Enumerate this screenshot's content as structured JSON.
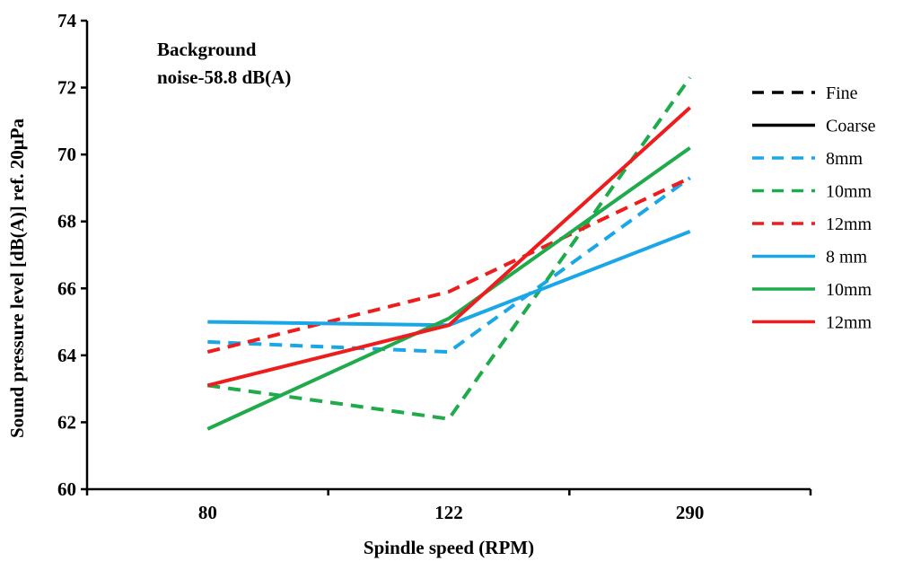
{
  "chart_data": {
    "type": "line",
    "categories": [
      "80",
      "122",
      "290"
    ],
    "xlabel": "Spindle speed (RPM)",
    "ylabel": "Sound pressure level [dB(A)] ref. 20μPa",
    "ylim": [
      60,
      74
    ],
    "yticks": [
      "60",
      "62",
      "64",
      "66",
      "68",
      "70",
      "72",
      "74"
    ],
    "grid": false,
    "legend_position": "right",
    "annotation": [
      "Background",
      "noise-58.8 dB(A)"
    ],
    "legend_style_entries": [
      {
        "label": "Fine",
        "dash": "dashed",
        "color": "#000000"
      },
      {
        "label": "Coarse",
        "dash": "solid",
        "color": "#000000"
      }
    ],
    "series": [
      {
        "name": "8mm",
        "style": "dashed",
        "color": "#1aa7e8",
        "values": [
          64.4,
          64.1,
          69.3
        ]
      },
      {
        "name": "10mm",
        "style": "dashed",
        "color": "#1faa4b",
        "values": [
          63.1,
          62.1,
          72.3
        ]
      },
      {
        "name": "12mm",
        "style": "dashed",
        "color": "#ee1c1c",
        "values": [
          64.1,
          65.9,
          69.3
        ]
      },
      {
        "name": "8 mm",
        "style": "solid",
        "color": "#1aa7e8",
        "values": [
          65.0,
          64.9,
          67.7
        ]
      },
      {
        "name": "10mm",
        "style": "solid",
        "color": "#1faa4b",
        "values": [
          61.8,
          65.1,
          70.2
        ]
      },
      {
        "name": "12mm",
        "style": "solid",
        "color": "#ee1c1c",
        "values": [
          63.1,
          64.9,
          71.4
        ]
      }
    ]
  }
}
